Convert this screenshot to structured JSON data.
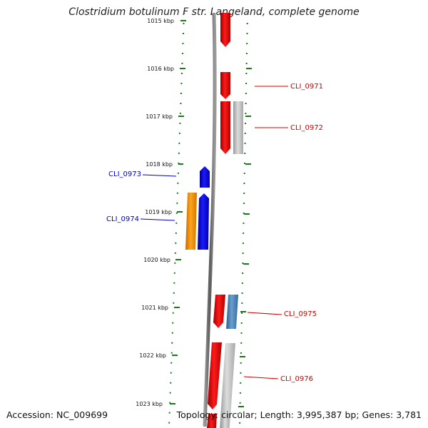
{
  "title": "Clostridium botulinum F str. Langeland, complete genome",
  "accession": "Accession: NC_009699",
  "summary": "Topology: circular; Length: 3,995,387 bp; Genes: 3,781",
  "colors": {
    "tick": "#1a7a1a",
    "backbone": "#8a8a8a",
    "forward_label": "#cc0000",
    "reverse_label": "#0000cc"
  },
  "ticks": [
    "1015 kbp",
    "1016 kbp",
    "1017 kbp",
    "1018 kbp",
    "1019 kbp",
    "1020 kbp",
    "1021 kbp",
    "1022 kbp",
    "1023 kbp"
  ],
  "gene_labels": [
    {
      "name": "CLI_0971",
      "strand": "forward"
    },
    {
      "name": "CLI_0972",
      "strand": "forward"
    },
    {
      "name": "CLI_0973",
      "strand": "reverse"
    },
    {
      "name": "CLI_0974",
      "strand": "reverse"
    },
    {
      "name": "CLI_0975",
      "strand": "forward"
    },
    {
      "name": "CLI_0976",
      "strand": "forward"
    }
  ]
}
